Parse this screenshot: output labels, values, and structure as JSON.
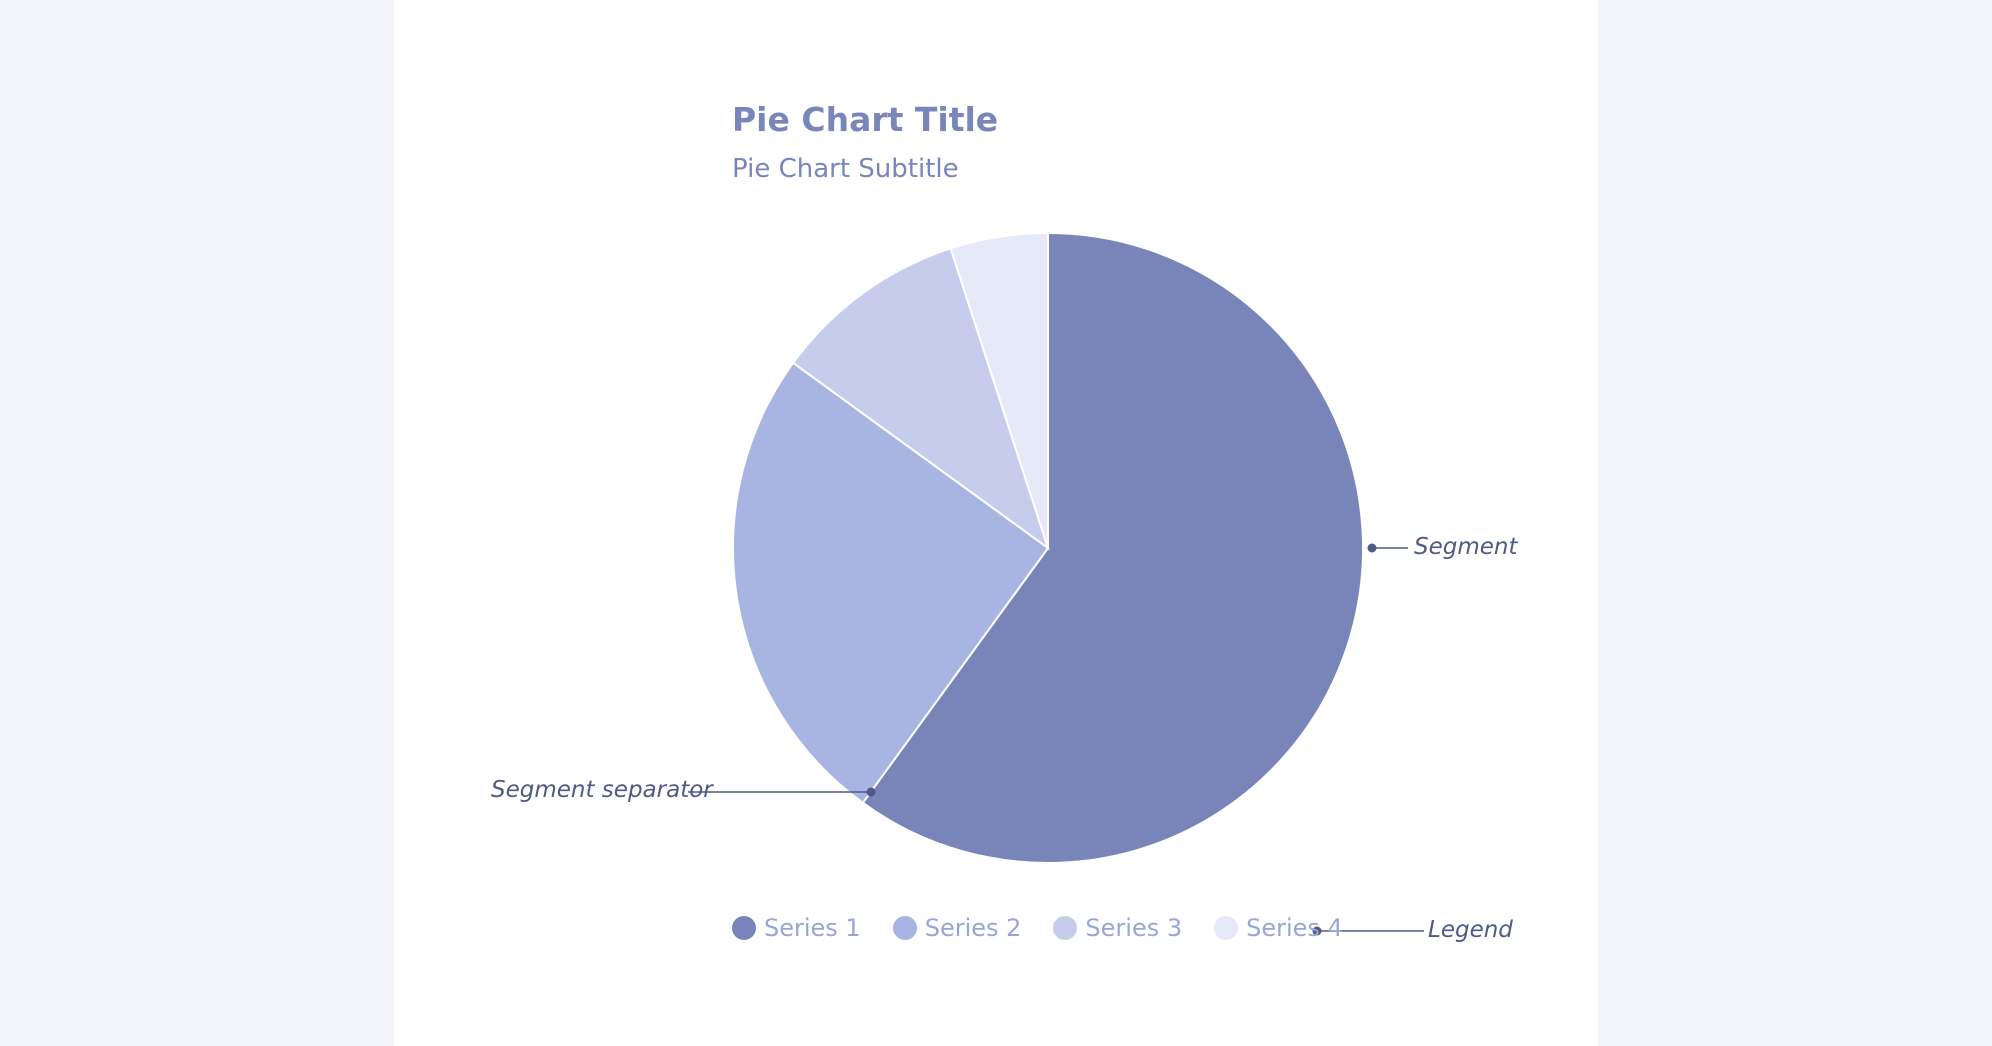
{
  "chart_data": {
    "type": "pie",
    "title": "Pie Chart Title",
    "subtitle": "Pie Chart Subtitle",
    "categories": [
      "Series 1",
      "Series 2",
      "Series 3",
      "Series 4"
    ],
    "values": [
      60,
      25,
      10,
      5
    ],
    "colors": [
      "#7985b9",
      "#a8b5e2",
      "#c6cdec",
      "#e6e9f7"
    ],
    "legend_position": "bottom",
    "separator_color": "#ffffff"
  },
  "annotations": {
    "segment": "Segment",
    "segment_separator": "Segment separator",
    "legend": "Legend"
  }
}
